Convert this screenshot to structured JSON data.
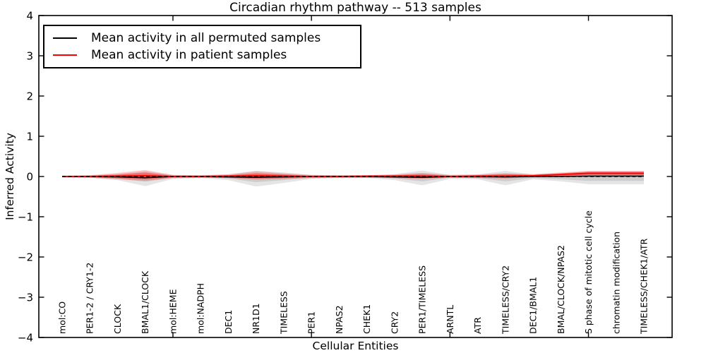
{
  "title": "Circadian rhythm pathway -- 513 samples",
  "xlabel": "Cellular Entities",
  "ylabel": "Inferred Activity",
  "legend": {
    "entries": [
      {
        "name": "permuted",
        "label": "Mean activity in all permuted samples",
        "color": "#000000"
      },
      {
        "name": "patient",
        "label": "Mean activity in patient samples",
        "color": "#ff0000"
      }
    ]
  },
  "chart_data": {
    "type": "line",
    "title": "Circadian rhythm pathway -- 513 samples",
    "xlabel": "Cellular Entities",
    "ylabel": "Inferred Activity",
    "ylim": [
      -4,
      4
    ],
    "ytick_values": [
      4,
      3,
      2,
      1,
      0,
      -1,
      -2,
      -3,
      -4
    ],
    "ytick_labels": [
      "4",
      "3",
      "2",
      "1",
      "0",
      "−1",
      "−2",
      "−3",
      "−4"
    ],
    "x_major_tick_indices": [
      4,
      9,
      14,
      19
    ],
    "grid": false,
    "legend_position": "upper left",
    "categories": [
      "mol:CO",
      "PER1-2 / CRY1-2",
      "CLOCK",
      "BMAL1/CLOCK",
      "mol:HEME",
      "mol:NADPH",
      "DEC1",
      "NR1D1",
      "TIMELESS",
      "PER1",
      "NPAS2",
      "CHEK1",
      "CRY2",
      "PER1/TIMELESS",
      "ARNTL",
      "ATR",
      "TIMELESS/CRY2",
      "DEC1/BMAL1",
      "BMAL/CLOCK/NPAS2",
      "S phase of mitotic cell cycle",
      "chromatin modification",
      "TIMELESS/CHEK1/ATR"
    ],
    "series": [
      {
        "name": "permuted-mean",
        "label": "Mean activity in all permuted samples",
        "color": "#000000",
        "width": 1.6,
        "dash": "",
        "values": [
          0,
          0,
          -0.01,
          -0.03,
          0,
          0,
          -0.01,
          -0.02,
          -0.01,
          0,
          0,
          0,
          -0.01,
          -0.02,
          0,
          0,
          -0.01,
          0,
          0,
          0.01,
          0.01,
          0.01
        ]
      },
      {
        "name": "patient-mean",
        "label": "Mean activity in patient samples",
        "color": "#ff0000",
        "width": 1.8,
        "dash": "",
        "values": [
          0,
          0,
          0.01,
          0.02,
          0,
          0,
          0.01,
          0.02,
          0.01,
          0,
          0,
          0.01,
          0.01,
          0.01,
          0,
          0.01,
          0.01,
          0.02,
          0.05,
          0.08,
          0.08,
          0.08
        ]
      }
    ],
    "reference_line": {
      "name": "zero-line",
      "value": 0,
      "color": "#000000",
      "width": 1.4,
      "dash": "5,3.5"
    },
    "bands": [
      {
        "name": "permuted-spread-outer",
        "color": "#000000",
        "opacity": 0.1,
        "upper": [
          0.02,
          0.03,
          0.06,
          0.13,
          0.04,
          0.03,
          0.06,
          0.14,
          0.1,
          0.04,
          0.03,
          0.03,
          0.06,
          0.15,
          0.04,
          0.05,
          0.14,
          0.05,
          0.08,
          0.12,
          0.12,
          0.12
        ],
        "lower": [
          -0.02,
          -0.03,
          -0.09,
          -0.24,
          -0.06,
          -0.04,
          -0.09,
          -0.25,
          -0.16,
          -0.06,
          -0.04,
          -0.04,
          -0.09,
          -0.22,
          -0.06,
          -0.07,
          -0.22,
          -0.07,
          -0.12,
          -0.19,
          -0.19,
          -0.19
        ]
      },
      {
        "name": "permuted-spread-inner",
        "color": "#000000",
        "opacity": 0.1,
        "upper": [
          0.01,
          0.02,
          0.03,
          0.07,
          0.02,
          0.02,
          0.03,
          0.08,
          0.05,
          0.02,
          0.02,
          0.02,
          0.03,
          0.08,
          0.02,
          0.03,
          0.08,
          0.03,
          0.05,
          0.07,
          0.07,
          0.07
        ],
        "lower": [
          -0.01,
          -0.02,
          -0.05,
          -0.13,
          -0.03,
          -0.02,
          -0.05,
          -0.14,
          -0.09,
          -0.03,
          -0.02,
          -0.02,
          -0.05,
          -0.12,
          -0.03,
          -0.04,
          -0.12,
          -0.04,
          -0.07,
          -0.11,
          -0.11,
          -0.11
        ]
      },
      {
        "name": "patient-spread-outer",
        "color": "#ff0000",
        "opacity": 0.22,
        "upper": [
          0.02,
          0.03,
          0.09,
          0.16,
          0.04,
          0.03,
          0.05,
          0.13,
          0.08,
          0.04,
          0.03,
          0.03,
          0.05,
          0.09,
          0.04,
          0.05,
          0.08,
          0.06,
          0.1,
          0.14,
          0.14,
          0.14
        ],
        "lower": [
          -0.02,
          -0.03,
          -0.07,
          -0.11,
          -0.04,
          -0.03,
          -0.04,
          -0.08,
          -0.06,
          -0.04,
          -0.03,
          -0.03,
          -0.04,
          -0.06,
          -0.03,
          -0.04,
          -0.05,
          -0.02,
          0.0,
          0.03,
          0.03,
          0.03
        ]
      },
      {
        "name": "patient-spread-inner",
        "color": "#ff0000",
        "opacity": 0.33,
        "upper": [
          0.01,
          0.02,
          0.05,
          0.1,
          0.02,
          0.02,
          0.03,
          0.08,
          0.05,
          0.02,
          0.02,
          0.02,
          0.03,
          0.05,
          0.02,
          0.03,
          0.05,
          0.04,
          0.08,
          0.12,
          0.12,
          0.12
        ],
        "lower": [
          -0.01,
          -0.02,
          -0.04,
          -0.07,
          -0.02,
          -0.02,
          -0.03,
          -0.05,
          -0.04,
          -0.02,
          -0.02,
          -0.02,
          -0.03,
          -0.04,
          -0.02,
          -0.03,
          -0.03,
          -0.01,
          0.01,
          0.04,
          0.04,
          0.04
        ]
      }
    ]
  }
}
